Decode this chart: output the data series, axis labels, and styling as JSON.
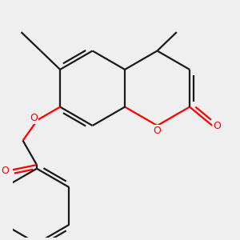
{
  "bg_color": "#efefef",
  "bond_color": "#1a1a1a",
  "oxygen_color": "#ff0000",
  "bond_lw": 1.6,
  "figsize": [
    3.0,
    3.0
  ],
  "dpi": 100,
  "xlim": [
    0.0,
    5.8
  ],
  "ylim": [
    -3.5,
    2.8
  ]
}
